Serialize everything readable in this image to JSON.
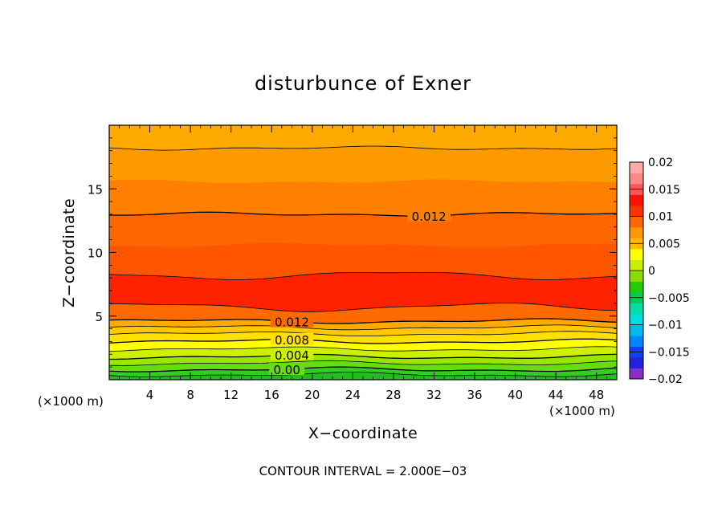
{
  "chart_data": {
    "type": "contour",
    "title": "disturbunce of Exner",
    "xlabel": "X−coordinate",
    "ylabel": "Z−coordinate",
    "x_unit_left": "(×1000 m)",
    "x_unit_right": "(×1000 m)",
    "footer": "CONTOUR INTERVAL = 2.000E−03",
    "xlim": [
      0,
      50
    ],
    "ylim": [
      0,
      20
    ],
    "x_ticks": [
      {
        "value": 4,
        "label": "4"
      },
      {
        "value": 8,
        "label": "8"
      },
      {
        "value": 12,
        "label": "12"
      },
      {
        "value": 16,
        "label": "16"
      },
      {
        "value": 20,
        "label": "20"
      },
      {
        "value": 24,
        "label": "24"
      },
      {
        "value": 28,
        "label": "28"
      },
      {
        "value": 32,
        "label": "32"
      },
      {
        "value": 36,
        "label": "36"
      },
      {
        "value": 40,
        "label": "40"
      },
      {
        "value": 44,
        "label": "44"
      },
      {
        "value": 48,
        "label": "48"
      }
    ],
    "y_ticks": [
      {
        "value": 5,
        "label": "5"
      },
      {
        "value": 10,
        "label": "10"
      },
      {
        "value": 15,
        "label": "15"
      }
    ],
    "contour_interval": 0.002,
    "bands": [
      {
        "z": [
          0.0,
          0.4
        ],
        "value": -0.002,
        "color": "#22bb22"
      },
      {
        "z": [
          0.4,
          0.8
        ],
        "value": 0.0,
        "color": "#33cc22"
      },
      {
        "z": [
          0.8,
          1.3
        ],
        "value": 0.002,
        "color": "#66dd11"
      },
      {
        "z": [
          1.3,
          1.8
        ],
        "value": 0.004,
        "color": "#99e600"
      },
      {
        "z": [
          1.8,
          2.4
        ],
        "value": 0.006,
        "color": "#ccf000"
      },
      {
        "z": [
          2.4,
          3.0
        ],
        "value": 0.008,
        "color": "#ffff00"
      },
      {
        "z": [
          3.0,
          3.6
        ],
        "value": 0.009,
        "color": "#ffe000"
      },
      {
        "z": [
          3.6,
          4.1
        ],
        "value": 0.01,
        "color": "#ffc800"
      },
      {
        "z": [
          4.1,
          4.6
        ],
        "value": 0.011,
        "color": "#ffaa00"
      },
      {
        "z": [
          4.6,
          5.7
        ],
        "value": 0.013,
        "color": "#ff6a00"
      },
      {
        "z": [
          5.7,
          8.2
        ],
        "value": 0.016,
        "color": "#ff2200"
      },
      {
        "z": [
          8.2,
          10.6
        ],
        "value": 0.014,
        "color": "#ff5500"
      },
      {
        "z": [
          10.6,
          13.0
        ],
        "value": 0.013,
        "color": "#ff6600"
      },
      {
        "z": [
          13.0,
          15.6
        ],
        "value": 0.012,
        "color": "#ff8000"
      },
      {
        "z": [
          15.6,
          18.2
        ],
        "value": 0.011,
        "color": "#ff9900"
      },
      {
        "z": [
          18.2,
          20.0
        ],
        "value": 0.01,
        "color": "#ffaa00"
      }
    ],
    "contour_lines": [
      {
        "z": 0.4,
        "label": ""
      },
      {
        "z": 0.8,
        "label": "0.00"
      },
      {
        "z": 1.3,
        "label": ""
      },
      {
        "z": 1.8,
        "label": "0.004"
      },
      {
        "z": 2.4,
        "label": ""
      },
      {
        "z": 3.0,
        "label": "0.008"
      },
      {
        "z": 3.6,
        "label": ""
      },
      {
        "z": 4.1,
        "label": ""
      },
      {
        "z": 4.6,
        "label": "0.012"
      },
      {
        "z": 5.7,
        "label": ""
      },
      {
        "z": 8.2,
        "label": ""
      },
      {
        "z": 13.0,
        "label": "0.012"
      },
      {
        "z": 18.2,
        "label": ""
      }
    ],
    "contour_label_positions": [
      {
        "line_z": 0.8,
        "x": 17.5
      },
      {
        "line_z": 1.8,
        "x": 18.0
      },
      {
        "line_z": 3.0,
        "x": 18.0
      },
      {
        "line_z": 4.6,
        "x": 18.0
      },
      {
        "line_z": 13.0,
        "x": 31.5
      }
    ],
    "colorbar": {
      "range": [
        -0.02,
        0.02
      ],
      "tick_labels": [
        "0.02",
        "0.015",
        "0.01",
        "0.005",
        "0",
        "−0.005",
        "−0.01",
        "−0.015",
        "−0.02"
      ],
      "colors": [
        "#8a2fbf",
        "#2222dd",
        "#1144ee",
        "#0088ff",
        "#00bbee",
        "#00dddd",
        "#00ddaa",
        "#00cc55",
        "#22cc00",
        "#88dd00",
        "#ccee00",
        "#ffff00",
        "#ffbb00",
        "#ff9900",
        "#ff6600",
        "#ff3300",
        "#ff1100",
        "#ff5555",
        "#ff8888",
        "#ffaaaa"
      ]
    }
  }
}
